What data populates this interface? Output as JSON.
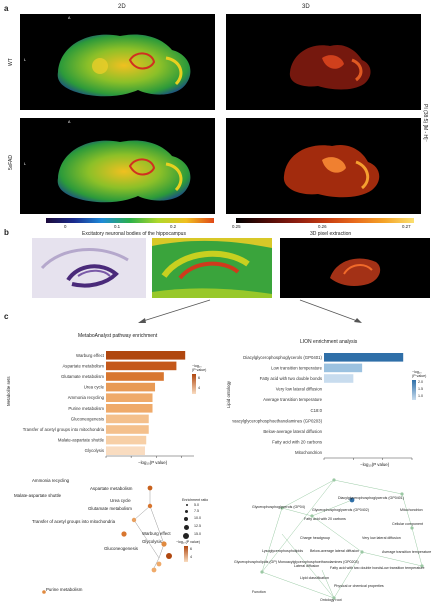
{
  "panel_a": {
    "label": "a",
    "col_2d": "2D",
    "col_3d": "3D",
    "row_wt": "WT",
    "row_5xfad": "5xFAD",
    "axis_A": "A",
    "axis_L": "L",
    "side_label": "PI (38:5) [M - H]⁻",
    "cbar_2d_ticks": [
      "0",
      "0.1",
      "0.2"
    ],
    "cbar_3d_ticks": [
      "0.25",
      "0.26",
      "0.27"
    ]
  },
  "panel_b": {
    "label": "b",
    "title_left": "Excitatory neuronal bodies of the hippocampus",
    "title_right": "3D pixel extraction"
  },
  "panel_c": {
    "label": "c",
    "metabo_title": "MetaboAnalyst pathway enrichment",
    "metabo_ylabel": "Metabolite sets",
    "metabo_xlabel": "−log₁₀(P value)",
    "metabo_legend_title": "−log₁₀\n(P value)",
    "metabo_legend_ticks": [
      "6",
      "4"
    ],
    "lion_title": "LION enrichment analysis",
    "lion_ylabel": "Lipid ontology",
    "lion_xlabel": "−log₁₀(P value)",
    "lion_legend_title": "−log₁₀\n(P value)",
    "lion_legend_ticks": [
      "2.0",
      "1.5",
      "1.0"
    ],
    "network_left_enrichment_title": "Enrichment ratio",
    "network_left_enrichment_ticks": [
      "5.0",
      "7.5",
      "10.0",
      "12.5",
      "15.0"
    ],
    "network_left_p_title": "−log₁₀(P value)",
    "network_left_p_ticks": [
      "6",
      "4"
    ]
  },
  "chart_data": [
    {
      "type": "bar",
      "title": "MetaboAnalyst pathway enrichment",
      "xlabel": "−log₁₀(P value)",
      "ylabel": "Metabolite sets",
      "categories": [
        "Warburg effect",
        "Aspartate metabolism",
        "Glutamate metabolism",
        "Urea cycle",
        "Ammonia recycling",
        "Purine metabolism",
        "Gluconeogenesis",
        "Transfer of acetyl groups into mitochondria",
        "Malate-aspartate shuttle",
        "Glycolysis"
      ],
      "values": [
        6.3,
        5.6,
        4.6,
        3.9,
        3.7,
        3.7,
        3.4,
        3.4,
        3.2,
        3.1
      ],
      "xlim": [
        0,
        7
      ],
      "xticks": [
        "0",
        "2",
        "4",
        "6"
      ],
      "colors": [
        "#b0470f",
        "#c4581a",
        "#d8762f",
        "#e89a55",
        "#efaa6a",
        "#efaa6a",
        "#f4c08c",
        "#f4c08c",
        "#f7cfa6",
        "#f9dcc0"
      ]
    },
    {
      "type": "bar",
      "title": "LION enrichment analysis",
      "xlabel": "−log₁₀(P value)",
      "ylabel": "Lipid ontology",
      "categories": [
        "Diacylglycerophosphoglycerols (GP0401)",
        "Low transition temperature",
        "Fatty acid with two double bonds",
        "Very low lateral diffusion",
        "Average transition temperature",
        "C18:0",
        "Monoacylglycerophosphoethanolamines (GP0203)",
        "Below-average lateral diffusion",
        "Fatty acid with 20 carbons",
        "Mitochondrion"
      ],
      "values": [
        2.7,
        1.3,
        1.0,
        0.0,
        0.0,
        0.0,
        0.0,
        0.0,
        0.0,
        0.0
      ],
      "xlim": [
        0,
        3
      ],
      "xticks": [
        "0",
        "1",
        "2",
        "3"
      ],
      "colors": [
        "#2f6fa8",
        "#9cc2e0",
        "#c8dcee",
        "#e6eef7",
        "#e6eef7",
        "#e6eef7",
        "#e6eef7",
        "#e6eef7",
        "#e6eef7",
        "#e6eef7"
      ]
    }
  ],
  "network_left": {
    "nodes": [
      "Ammonia recycling",
      "Aspartate metabolism",
      "Malate-aspartate shuttle",
      "Urea cycle",
      "Glutamate metabolism",
      "Transfer of acetyl groups into mitochondria",
      "Warburg effect",
      "Glycolysis",
      "Gluconeogenesis",
      "Purine metabolism"
    ]
  },
  "network_right": {
    "nodes": [
      "Diacylglycerophosphoglycerols (GP0401)",
      "Glycerophosphoglycerols (GP04)",
      "Glycerophosphoglycerols (GP0402)",
      "Mitochondrion",
      "Cellular component",
      "Fatty acid with 20 carbons",
      "Charge headgroup",
      "Very low lateral diffusion",
      "Lysoglycerophospholipids",
      "Below-average lateral diffusion",
      "Average transition temperature",
      "Glycerophospholipids (GP)",
      "Monoacylglycerophosphoethanolamines (GP0203)",
      "Lateral diffusion",
      "Fatty acid with two double bonds",
      "Low transition temperature",
      "Lipid classification",
      "Physical or chemical properties",
      "Function",
      "Ontology root"
    ]
  }
}
